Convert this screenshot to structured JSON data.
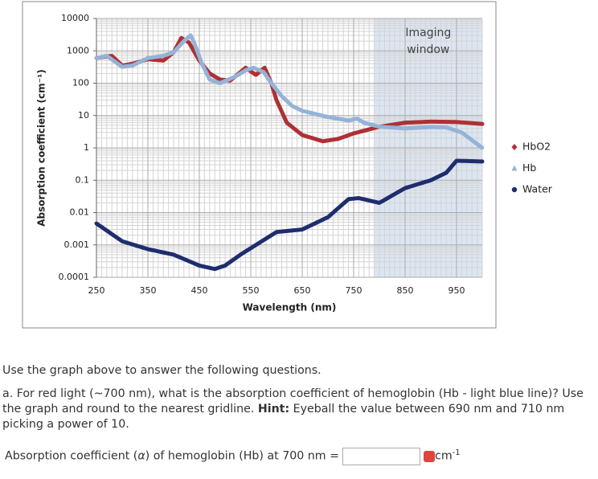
{
  "chart_data": {
    "type": "line",
    "y_label": "Absorption coefficient (cm⁻¹)",
    "x_label": "Wavelength (nm)",
    "xlim": [
      250,
      1000
    ],
    "xticks": [
      250,
      350,
      450,
      550,
      650,
      750,
      850,
      950
    ],
    "ylim": [
      0.0001,
      10000
    ],
    "yticks": [
      0.0001,
      0.001,
      0.01,
      0.1,
      1,
      10,
      100,
      1000,
      10000
    ],
    "y_scale": "log",
    "grid": true,
    "legend": "right",
    "window": {
      "label_lines": [
        "Imaging",
        "window"
      ],
      "range": [
        790,
        1000
      ],
      "color": "#dce6f2"
    },
    "series": [
      {
        "name": "HbO2",
        "color": "#ae3035",
        "marker": "diamond",
        "x": [
          250,
          280,
          300,
          320,
          350,
          380,
          400,
          415,
          430,
          450,
          470,
          490,
          510,
          540,
          560,
          577,
          590,
          600,
          620,
          650,
          690,
          720,
          750,
          800,
          850,
          900,
          950,
          1000
        ],
        "values": [
          600,
          700,
          350,
          400,
          550,
          500,
          900,
          2500,
          1800,
          500,
          200,
          130,
          120,
          300,
          180,
          300,
          100,
          30,
          6,
          2.5,
          1.6,
          1.9,
          2.8,
          4.5,
          6,
          6.5,
          6.3,
          5.5
        ]
      },
      {
        "name": "Hb",
        "color": "#95b3d7",
        "marker": "triangle",
        "x": [
          250,
          270,
          300,
          320,
          350,
          380,
          400,
          420,
          433,
          440,
          455,
          470,
          490,
          520,
          540,
          555,
          575,
          590,
          610,
          630,
          650,
          700,
          740,
          757,
          770,
          800,
          850,
          900,
          930,
          960,
          1000
        ],
        "values": [
          600,
          700,
          320,
          350,
          600,
          700,
          900,
          2000,
          3000,
          1800,
          400,
          130,
          100,
          160,
          250,
          300,
          220,
          100,
          40,
          20,
          14,
          9,
          7,
          8,
          6,
          4.5,
          4,
          4.4,
          4.3,
          3,
          1
        ]
      },
      {
        "name": "Water",
        "color": "#1f2d6e",
        "marker": "circle",
        "x": [
          250,
          300,
          350,
          400,
          450,
          480,
          500,
          530,
          560,
          600,
          650,
          700,
          740,
          760,
          800,
          850,
          900,
          930,
          950,
          1000
        ],
        "values": [
          0.0046,
          0.0013,
          0.00074,
          0.0005,
          0.00023,
          0.00018,
          0.00023,
          0.0005,
          0.001,
          0.0025,
          0.003,
          0.0072,
          0.026,
          0.028,
          0.02,
          0.057,
          0.1,
          0.17,
          0.4,
          0.38
        ]
      }
    ]
  },
  "question": {
    "intro": "Use the graph above to answer the following questions.",
    "part_a": "a. For red light (~700 nm), what is the absorption coefficient of hemoglobin (Hb - light blue line)? Use the graph and round to the nearest gridline.",
    "hint_label": "Hint:",
    "hint": "Eyeball the value between 690 nm and 710 nm picking a power of 10.",
    "answer_prefix": "Absorption coefficient (",
    "answer_symbol": "α",
    "answer_suffix": ") of hemoglobin (Hb) at 700 nm =",
    "unit": "cm",
    "unit_exp": "-1"
  }
}
